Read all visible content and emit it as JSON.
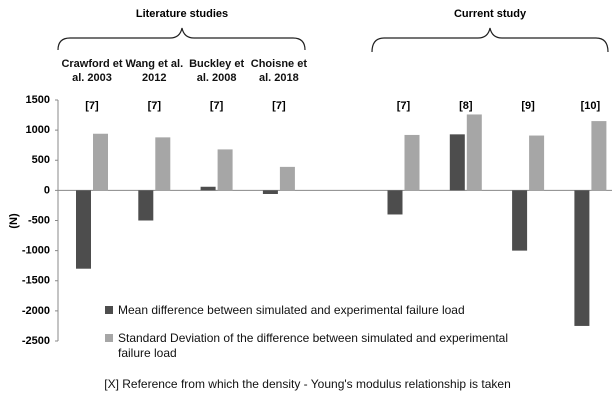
{
  "chart_data": {
    "type": "bar",
    "categories": [
      "Crawford et al. 2003",
      "Wang et al. 2012",
      "Buckley et al. 2008",
      "Choisne et al. 2018",
      null,
      null,
      null,
      null,
      null
    ],
    "ref_labels": [
      "[7]",
      "[7]",
      "[7]",
      "[7]",
      null,
      "[7]",
      "[8]",
      "[9]",
      "[10]"
    ],
    "groups": [
      {
        "label": "Literature studies"
      },
      {
        "label": "Current study"
      }
    ],
    "y_label": "(N)",
    "series": [
      {
        "name": "Mean difference between simulated and experimental failure load",
        "color": "#4d4d4d",
        "values": [
          -1300,
          -500,
          60,
          -60,
          null,
          -400,
          930,
          -1000,
          -2250
        ]
      },
      {
        "name": "Standard Deviation of the difference between simulated and experimental failure load",
        "color": "#a6a6a6",
        "values": [
          940,
          880,
          680,
          390,
          null,
          920,
          1260,
          910,
          1150
        ]
      }
    ],
    "ylim": [
      -2500,
      1500
    ],
    "yticks": [
      -2500,
      -2000,
      -1500,
      -1000,
      -500,
      0,
      500,
      1000,
      1500
    ],
    "footnote": "[X] Reference from which the density - Young's modulus relationship is taken"
  }
}
